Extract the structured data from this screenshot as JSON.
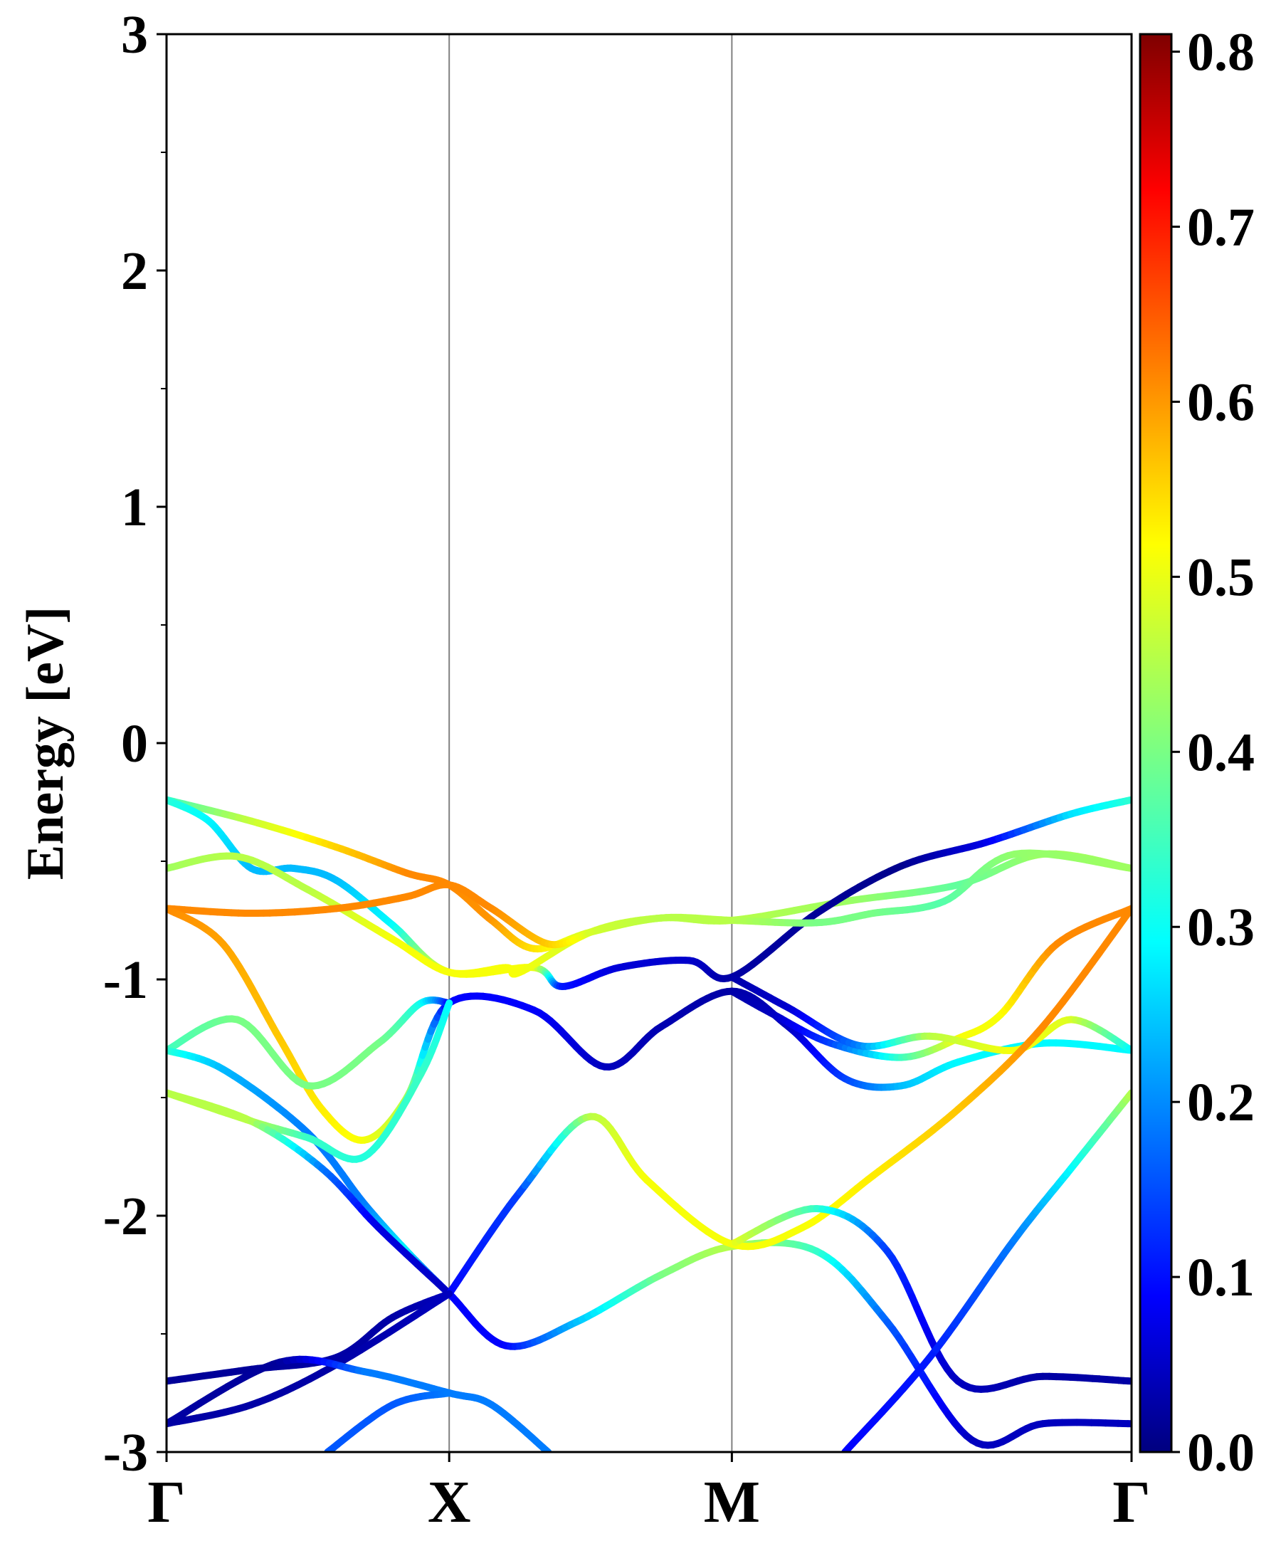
{
  "chart_data": {
    "type": "line",
    "title": "",
    "xlabel": "",
    "ylabel": "Energy [eV]",
    "ylim": [
      -3,
      3
    ],
    "yticks": [
      -3,
      -2,
      -1,
      0,
      1,
      2,
      3
    ],
    "ytick_labels": [
      "-3",
      "-2",
      "-1",
      "0",
      "1",
      "2",
      "3"
    ],
    "y_minor_step": 0.5,
    "xlim": [
      0,
      3.414
    ],
    "kpoints": [
      {
        "label": "Γ",
        "x": 0
      },
      {
        "label": "X",
        "x": 1
      },
      {
        "label": "M",
        "x": 2
      },
      {
        "label": "Γ",
        "x": 3.414
      }
    ],
    "grid": "vertical lines at high-symmetry points",
    "colorbar": {
      "colormap": "jet",
      "range": [
        0,
        0.81
      ],
      "ticks": [
        0.0,
        0.1,
        0.2,
        0.3,
        0.4,
        0.5,
        0.6,
        0.7,
        0.8
      ],
      "tick_labels": [
        "0.0",
        "0.1",
        "0.2",
        "0.3",
        "0.4",
        "0.5",
        "0.6",
        "0.7",
        "0.8"
      ],
      "position": "right"
    },
    "series": [
      {
        "points": [
          [
            0,
            -0.24,
            0.34
          ],
          [
            0.3,
            -0.33,
            0.46
          ],
          [
            0.6,
            -0.44,
            0.54
          ],
          [
            0.85,
            -0.55,
            0.6
          ],
          [
            1,
            -0.6,
            0.6
          ],
          [
            1.15,
            -0.75,
            0.59
          ],
          [
            1.3,
            -0.87,
            0.53
          ],
          [
            1.5,
            -0.8,
            0.47
          ],
          [
            1.75,
            -0.74,
            0.45
          ],
          [
            2,
            -0.75,
            0.45
          ],
          [
            2.4,
            -0.67,
            0.43
          ],
          [
            2.8,
            -0.6,
            0.38
          ],
          [
            3.1,
            -0.47,
            0.43
          ],
          [
            3.414,
            -0.53,
            0.43
          ]
        ]
      },
      {
        "points": [
          [
            0,
            -0.24,
            0.34
          ],
          [
            0.15,
            -0.33,
            0.3
          ],
          [
            0.3,
            -0.53,
            0.25
          ],
          [
            0.45,
            -0.53,
            0.25
          ],
          [
            0.6,
            -0.58,
            0.25
          ],
          [
            0.8,
            -0.77,
            0.3
          ],
          [
            1,
            -0.97,
            0.5
          ],
          [
            1.3,
            -0.95,
            0.5
          ],
          [
            1.4,
            -1.03,
            0.12
          ],
          [
            1.6,
            -0.95,
            0.07
          ],
          [
            1.85,
            -0.92,
            0.06
          ],
          [
            2,
            -0.99,
            0.03
          ],
          [
            2.3,
            -0.72,
            0.02
          ],
          [
            2.6,
            -0.52,
            0.01
          ],
          [
            2.9,
            -0.42,
            0.08
          ],
          [
            3.2,
            -0.3,
            0.28
          ],
          [
            3.414,
            -0.24,
            0.34
          ]
        ]
      },
      {
        "points": [
          [
            0,
            -0.53,
            0.43
          ],
          [
            0.25,
            -0.48,
            0.45
          ],
          [
            0.5,
            -0.62,
            0.45
          ],
          [
            0.8,
            -0.83,
            0.5
          ],
          [
            1,
            -0.97,
            0.5
          ],
          [
            1.2,
            -0.95,
            0.5
          ],
          [
            1.25,
            -0.97,
            0.5
          ],
          [
            1.5,
            -0.8,
            0.47
          ],
          [
            1.75,
            -0.74,
            0.45
          ],
          [
            2,
            -0.75,
            0.45
          ],
          [
            2.3,
            -0.76,
            0.4
          ],
          [
            2.5,
            -0.72,
            0.4
          ],
          [
            2.75,
            -0.67,
            0.37
          ],
          [
            3,
            -0.47,
            0.42
          ],
          [
            3.414,
            -0.53,
            0.43
          ]
        ]
      },
      {
        "points": [
          [
            0,
            -0.7,
            0.6
          ],
          [
            0.3,
            -0.72,
            0.6
          ],
          [
            0.6,
            -0.7,
            0.6
          ],
          [
            0.85,
            -0.65,
            0.6
          ],
          [
            1,
            -0.6,
            0.6
          ],
          [
            1.15,
            -0.7,
            0.6
          ],
          [
            1.35,
            -0.85,
            0.55
          ],
          [
            1.5,
            -0.8,
            0.47
          ]
        ]
      },
      {
        "points": [
          [
            0,
            -0.7,
            0.6
          ],
          [
            0.2,
            -0.85,
            0.58
          ],
          [
            0.4,
            -1.25,
            0.55
          ],
          [
            0.55,
            -1.55,
            0.52
          ],
          [
            0.7,
            -1.68,
            0.5
          ],
          [
            0.85,
            -1.5,
            0.45
          ],
          [
            1,
            -1.1,
            0.1
          ],
          [
            1.3,
            -1.13,
            0.1
          ],
          [
            1.55,
            -1.37,
            0.05
          ],
          [
            1.75,
            -1.2,
            0.04
          ],
          [
            2,
            -1.05,
            0.03
          ],
          [
            2.2,
            -1.2,
            0.05
          ],
          [
            2.4,
            -1.42,
            0.15
          ],
          [
            2.6,
            -1.45,
            0.25
          ],
          [
            2.8,
            -1.35,
            0.3
          ],
          [
            3.1,
            -1.27,
            0.3
          ],
          [
            3.414,
            -1.3,
            0.3
          ]
        ]
      },
      {
        "points": [
          [
            2,
            -1.05,
            0.03
          ],
          [
            2.15,
            -1.15,
            0.05
          ],
          [
            2.35,
            -1.27,
            0.15
          ],
          [
            2.6,
            -1.33,
            0.35
          ],
          [
            2.8,
            -1.25,
            0.5
          ],
          [
            2.95,
            -1.15,
            0.5
          ],
          [
            3.15,
            -0.85,
            0.6
          ],
          [
            3.414,
            -0.7,
            0.6
          ]
        ]
      },
      {
        "points": [
          [
            2,
            -0.99,
            0.03
          ],
          [
            2.2,
            -1.12,
            0.06
          ],
          [
            2.45,
            -1.28,
            0.2
          ],
          [
            2.7,
            -1.24,
            0.45
          ],
          [
            3,
            -1.3,
            0.5
          ],
          [
            3.2,
            -1.17,
            0.48
          ],
          [
            3.414,
            -1.3,
            0.3
          ]
        ]
      },
      {
        "points": [
          [
            0,
            -1.3,
            0.35
          ],
          [
            0.25,
            -1.17,
            0.4
          ],
          [
            0.5,
            -1.45,
            0.4
          ],
          [
            0.75,
            -1.27,
            0.4
          ],
          [
            0.9,
            -1.1,
            0.32
          ],
          [
            1,
            -1.1,
            0.1
          ]
        ]
      },
      {
        "points": [
          [
            0,
            -1.3,
            0.35
          ],
          [
            0.2,
            -1.38,
            0.25
          ],
          [
            0.5,
            -1.65,
            0.2
          ],
          [
            0.7,
            -1.95,
            0.2
          ],
          [
            0.85,
            -2.15,
            0.3
          ],
          [
            1,
            -2.33,
            0.1
          ],
          [
            1.2,
            -2.55,
            0.1
          ],
          [
            1.45,
            -2.45,
            0.25
          ],
          [
            1.75,
            -2.25,
            0.4
          ],
          [
            2,
            -2.13,
            0.45
          ],
          [
            2.3,
            -2.15,
            0.35
          ],
          [
            2.55,
            -2.45,
            0.18
          ],
          [
            2.85,
            -2.95,
            0.05
          ],
          [
            3.1,
            -2.88,
            0.05
          ],
          [
            3.414,
            -2.88,
            0.05
          ]
        ]
      },
      {
        "points": [
          [
            0,
            -1.48,
            0.45
          ],
          [
            0.3,
            -1.6,
            0.45
          ],
          [
            0.5,
            -1.67,
            0.35
          ],
          [
            0.7,
            -1.75,
            0.33
          ],
          [
            0.9,
            -1.4,
            0.35
          ],
          [
            1,
            -1.1,
            0.3
          ]
        ]
      },
      {
        "points": [
          [
            0,
            -1.48,
            0.45
          ],
          [
            0.3,
            -1.6,
            0.45
          ],
          [
            0.55,
            -1.8,
            0.2
          ],
          [
            0.75,
            -2.05,
            0.08
          ],
          [
            1,
            -2.33,
            0.05
          ]
        ]
      },
      {
        "points": [
          [
            1,
            -2.33,
            0.1
          ],
          [
            1.25,
            -1.9,
            0.15
          ],
          [
            1.5,
            -1.58,
            0.45
          ],
          [
            1.7,
            -1.85,
            0.5
          ],
          [
            2,
            -2.12,
            0.5
          ],
          [
            2.25,
            -2.05,
            0.5
          ],
          [
            2.5,
            -1.83,
            0.52
          ],
          [
            2.8,
            -1.55,
            0.55
          ],
          [
            3.1,
            -1.2,
            0.6
          ],
          [
            3.414,
            -0.7,
            0.6
          ]
        ]
      },
      {
        "points": [
          [
            2,
            -2.12,
            0.5
          ],
          [
            2.3,
            -1.97,
            0.35
          ],
          [
            2.55,
            -2.15,
            0.15
          ],
          [
            2.8,
            -2.7,
            0.05
          ],
          [
            3.1,
            -2.68,
            0.03
          ],
          [
            3.414,
            -2.7,
            0.03
          ]
        ]
      },
      {
        "points": [
          [
            2.4,
            -3.0,
            0.1
          ],
          [
            2.7,
            -2.6,
            0.12
          ],
          [
            3,
            -2.1,
            0.2
          ],
          [
            3.2,
            -1.8,
            0.3
          ],
          [
            3.414,
            -1.48,
            0.45
          ]
        ]
      },
      {
        "points": [
          [
            0,
            -2.7,
            0.02
          ],
          [
            0.3,
            -2.65,
            0.02
          ],
          [
            0.6,
            -2.6,
            0.03
          ],
          [
            0.8,
            -2.43,
            0.03
          ],
          [
            1,
            -2.33,
            0.05
          ]
        ]
      },
      {
        "points": [
          [
            0,
            -2.88,
            0.03
          ],
          [
            0.3,
            -2.8,
            0.03
          ],
          [
            0.6,
            -2.63,
            0.03
          ],
          [
            1,
            -2.33,
            0.05
          ]
        ]
      },
      {
        "points": [
          [
            0,
            -2.88,
            0.03
          ],
          [
            0.4,
            -2.62,
            0.02
          ],
          [
            0.7,
            -2.66,
            0.2
          ],
          [
            1,
            -2.75,
            0.2
          ],
          [
            1.15,
            -2.8,
            0.2
          ],
          [
            1.35,
            -3.0,
            0.2
          ]
        ]
      },
      {
        "points": [
          [
            0.57,
            -3.0,
            0.17
          ],
          [
            0.8,
            -2.8,
            0.17
          ],
          [
            1,
            -2.75,
            0.2
          ]
        ]
      }
    ]
  }
}
